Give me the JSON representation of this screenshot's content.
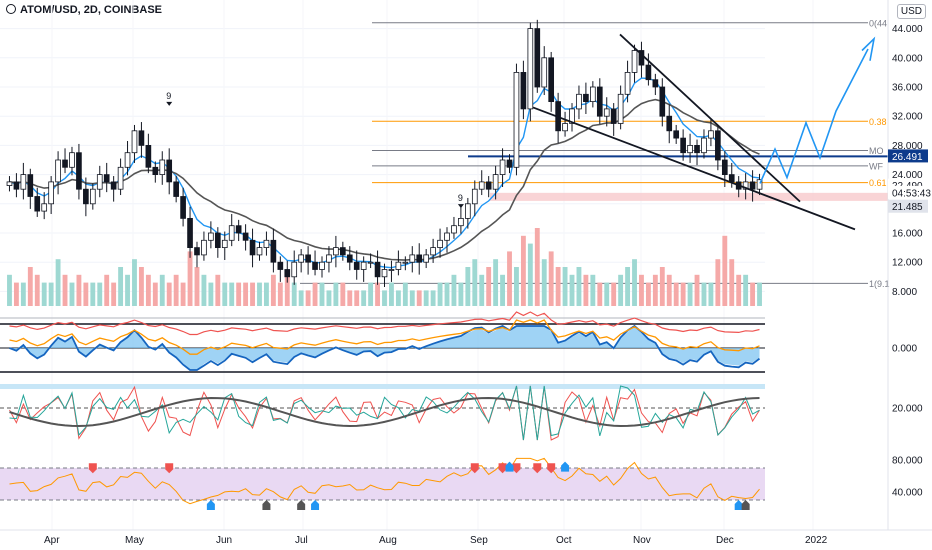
{
  "header": {
    "title": "ATOM/USD, 2D, COINBASE",
    "currency_badge": "USD"
  },
  "colors": {
    "up": "#26a69a",
    "down": "#ef5350",
    "ema_fast": "#2196f3",
    "ema_slow": "#555555",
    "fib": "#ff9800",
    "blue_level": "#0d3b8c",
    "projection": "#2196f3",
    "trend": "#131722",
    "rsi_band": "#e9d9f3",
    "rsi_line": "#ff9800"
  },
  "chart_data": [
    {
      "type": "candlestick",
      "name": "price",
      "x_labels": [
        "Apr",
        "May",
        "Jun",
        "Jul",
        "Aug",
        "Sep",
        "Oct",
        "Nov",
        "Dec",
        "2022"
      ],
      "ylim": [
        6,
        46
      ],
      "y_ticks": [
        8,
        12,
        16,
        20,
        24,
        28,
        32,
        36,
        40,
        44
      ],
      "y_tick_labels": [
        "8.000",
        "12.000",
        "16.000",
        "20.000",
        "24.000",
        "28.000",
        "32.000",
        "36.000",
        "40.000",
        "44.000"
      ],
      "close_path": [
        23,
        22,
        24,
        21,
        19,
        20,
        23,
        26,
        25,
        27,
        22,
        20,
        22,
        24,
        23,
        22,
        25,
        27,
        30,
        28,
        25,
        24,
        26,
        23,
        21,
        18,
        14,
        13,
        15,
        16,
        14,
        15,
        17,
        16,
        15,
        13,
        14,
        15,
        12,
        11,
        10,
        12,
        13,
        12,
        11,
        12,
        13,
        14,
        13,
        12,
        11,
        12,
        12,
        10,
        11,
        11,
        12,
        12,
        13,
        12,
        13,
        14,
        15,
        16,
        17,
        18,
        20,
        22,
        23,
        22,
        24,
        26,
        25,
        38,
        33,
        44,
        36,
        40,
        34,
        30,
        31,
        33,
        35,
        34,
        36,
        32,
        33,
        31,
        35,
        38,
        41,
        39,
        37,
        36,
        32,
        30,
        29,
        27,
        28,
        27,
        29,
        30,
        26,
        24,
        23,
        22,
        23,
        22,
        23.3
      ],
      "volume_path": [
        0.4,
        0.3,
        0.3,
        0.5,
        0.4,
        0.3,
        0.3,
        0.6,
        0.4,
        0.3,
        0.4,
        0.3,
        0.3,
        0.3,
        0.4,
        0.3,
        0.5,
        0.4,
        0.6,
        0.5,
        0.4,
        0.3,
        0.4,
        0.3,
        0.4,
        0.3,
        0.7,
        0.5,
        0.4,
        0.3,
        0.4,
        0.3,
        0.3,
        0.3,
        0.3,
        0.3,
        0.3,
        0.3,
        0.4,
        0.3,
        0.4,
        0.3,
        0.2,
        0.2,
        0.3,
        0.3,
        0.2,
        0.3,
        0.3,
        0.2,
        0.2,
        0.2,
        0.3,
        0.3,
        0.2,
        0.3,
        0.2,
        0.3,
        0.2,
        0.2,
        0.2,
        0.2,
        0.3,
        0.3,
        0.4,
        0.3,
        0.5,
        0.6,
        0.4,
        0.5,
        0.6,
        0.4,
        0.7,
        0.5,
        0.9,
        0.8,
        1.0,
        0.6,
        0.7,
        0.5,
        0.5,
        0.4,
        0.5,
        0.4,
        0.4,
        0.3,
        0.3,
        0.3,
        0.4,
        0.5,
        0.6,
        0.4,
        0.3,
        0.4,
        0.5,
        0.4,
        0.3,
        0.3,
        0.3,
        0.4,
        0.3,
        0.3,
        0.6,
        0.9,
        0.6,
        0.4,
        0.4,
        0.3,
        0.3
      ],
      "levels": [
        {
          "label": "0(44",
          "price": 44.8,
          "color": "#787b86"
        },
        {
          "label": "0.38",
          "price": 31.3,
          "color": "#ff9800"
        },
        {
          "label": "MO",
          "price": 27.3,
          "color": "#787b86"
        },
        {
          "label": "WF",
          "price": 25.2,
          "color": "#787b86"
        },
        {
          "label": "0.61",
          "price": 22.9,
          "color": "#ff9800"
        },
        {
          "label": "1(9.1",
          "price": 9.1,
          "color": "#787b86"
        }
      ],
      "blue_level": 26.491,
      "price_badges": [
        {
          "text": "26.491",
          "price": 26.491,
          "style": "blue"
        },
        {
          "text": "22.490",
          "price": 22.49,
          "style": "plain"
        },
        {
          "text": "04:53:43",
          "price": 21.5,
          "style": "plain"
        },
        {
          "text": "21.485",
          "price": 19.6,
          "style": "gray"
        }
      ],
      "annotations": [
        {
          "text": "9",
          "bar": 23,
          "price": 33
        },
        {
          "text": "9",
          "bar": 65,
          "price": 19
        }
      ]
    },
    {
      "type": "line",
      "name": "oscillator",
      "y_tick_labels": [
        "0.000"
      ]
    },
    {
      "type": "line",
      "name": "dmi",
      "y_tick_labels": [
        "20.000"
      ]
    },
    {
      "type": "line",
      "name": "rsi",
      "y_tick_labels": [
        "80.000",
        "40.000"
      ],
      "band": [
        30,
        70
      ]
    }
  ]
}
